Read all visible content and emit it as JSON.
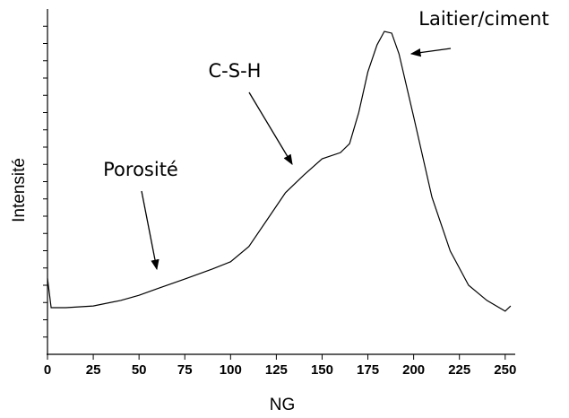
{
  "chart_data": {
    "type": "line",
    "x_label": "NG",
    "y_label": "Intensité",
    "x": [
      0,
      2,
      10,
      25,
      40,
      50,
      60,
      75,
      90,
      100,
      110,
      120,
      130,
      140,
      150,
      160,
      165,
      170,
      175,
      180,
      184,
      188,
      192,
      200,
      210,
      220,
      230,
      240,
      250,
      253
    ],
    "series": [
      {
        "color": "#000000",
        "values": [
          22,
          13.5,
          13.5,
          14,
          15.6,
          17.1,
          19,
          21.8,
          24.7,
          26.8,
          31.2,
          39,
          46.8,
          51.9,
          56.6,
          58.4,
          61,
          70,
          81.8,
          89.6,
          93.5,
          93,
          87,
          68.8,
          45.5,
          29.9,
          20,
          15.6,
          12.5,
          14
        ]
      }
    ],
    "xlim": [
      0,
      255
    ],
    "xticks": [
      0,
      25,
      50,
      75,
      100,
      125,
      150,
      175,
      200,
      225,
      250
    ],
    "ylim": [
      0,
      100
    ],
    "yticks": [
      5,
      10,
      15,
      20,
      25,
      30,
      35,
      40,
      45,
      50,
      55,
      60,
      65,
      70,
      75,
      80,
      85,
      90,
      95
    ],
    "ytick_labels": false,
    "annotations": [
      "Laitier/ciment",
      "C-S-H",
      "Porosité"
    ]
  }
}
